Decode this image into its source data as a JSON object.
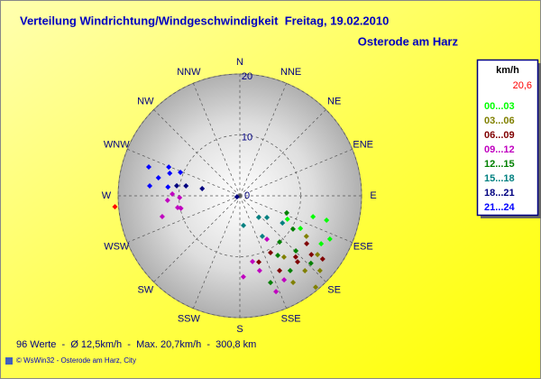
{
  "chart_data": {
    "type": "polar_scatter",
    "title": "Verteilung Windrichtung/Windgeschwindigkeit  Freitag, 19.02.2010",
    "subtitle": "Osterode am Harz",
    "legend_title": "km/h",
    "categories": [
      "N",
      "NNE",
      "NE",
      "ENE",
      "E",
      "ESE",
      "SE",
      "SSE",
      "S",
      "SSW",
      "SW",
      "WSW",
      "W",
      "WNW",
      "NW",
      "NNW"
    ],
    "xlim": [
      0,
      360
    ],
    "ylim": [
      0,
      20
    ],
    "yticks": [
      0,
      10,
      20
    ],
    "grid": true,
    "series": [
      {
        "name": "20,6",
        "color": "#ff0000",
        "x": [
          265
        ],
        "values": [
          20.6
        ]
      },
      {
        "name": "00...03",
        "color": "#00ff00",
        "x": [
          105.7,
          105.9,
          115.6,
          116.1,
          118.3,
          120.5
        ],
        "values": [
          14.8,
          12.5,
          16.4,
          8.7,
          11.3,
          15.5
        ]
      },
      {
        "name": "03...06",
        "color": "#808000",
        "x": [
          121.3,
          127.1,
          133,
          139,
          140.3,
          148.4,
          144.2
        ],
        "values": [
          12.8,
          16,
          18,
          16.3,
          19.5,
          16.7,
          12.4
        ]
      },
      {
        "name": "06...09",
        "color": "#800000",
        "x": [
          125.6,
          138.8,
          129.4,
          151.6,
          164,
          152,
          137.6,
          127.3
        ],
        "values": [
          13.5,
          14.4,
          15.2,
          10.6,
          11.3,
          13.9,
          13.6,
          17.1
        ]
      },
      {
        "name": "09...12",
        "color": "#c000c0",
        "x": [
          148,
          169.1,
          177.5,
          165.2,
          159.3,
          152.2,
          271.5,
          268.3,
          266.4,
          258,
          255,
          259.3
        ],
        "values": [
          8.4,
          11,
          13.3,
          12.7,
          16.8,
          15.6,
          11.1,
          9.9,
          11.9,
          9.9,
          13.2,
          10.4
        ]
      },
      {
        "name": "12...15",
        "color": "#008000",
        "x": [
          110,
          122,
          139.2,
          134.5,
          133.5,
          147.5,
          160.5,
          146
        ],
        "values": [
          8.2,
          10.3,
          10,
          12.9,
          16.1,
          11.6,
          15.1,
          14.8
        ]
      },
      {
        "name": "15...18",
        "color": "#008080",
        "x": [
          138.8,
          128.7,
          173,
          122.5,
          150.9
        ],
        "values": [
          4.7,
          5.7,
          4.9,
          8.3,
          7.6
        ]
      },
      {
        "name": "18...21",
        "color": "#000080",
        "x": [
          250,
          280.8,
          280.4,
          279
        ],
        "values": [
          0.5,
          6.3,
          9,
          10.5
        ]
      },
      {
        "name": "21...24",
        "color": "#0000ff",
        "x": [
          287.6,
          292,
          282.5,
          287.8,
          291.5,
          276.3,
          277
        ],
        "values": [
          15.7,
          12.6,
          13.7,
          12.1,
          10.5,
          14.9,
          11.9
        ]
      }
    ],
    "footer": "96 Werte  -  Ø 12,5km/h  -  Max. 20,7km/h  -  300,8 km",
    "copyright": "© WsWin32  -  Osterode am Harz, City"
  }
}
